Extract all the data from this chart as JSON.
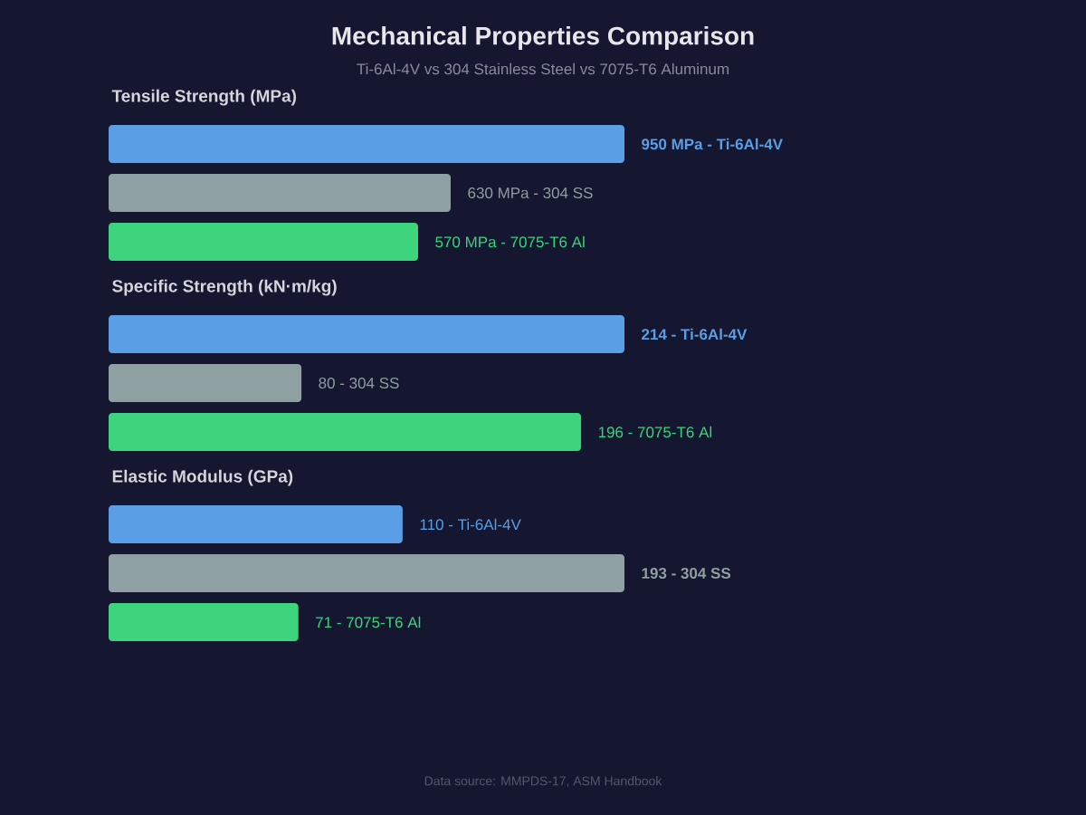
{
  "chart_data": [
    {
      "type": "other",
      "title": "Mechanical Properties Comparison",
      "subtitle": "Ti-6Al-4V vs 304 Stainless Steel vs 7075-T6 Aluminum",
      "annotations": [
        "Data source: MMPDS-17, ASM Handbook"
      ]
    },
    {
      "type": "bar",
      "orientation": "horizontal",
      "title": "Tensile Strength (MPa)",
      "categories": [
        null,
        null,
        null
      ],
      "values": [
        950,
        630,
        570
      ],
      "colors": [
        "#5a9fe6",
        "#8fa0a2",
        "#3ed47e"
      ],
      "value_labels": [
        "950 MPa - Ti-6Al-4V",
        "630 MPa - 304 SS",
        "570 MPa - 7075-T6 Al"
      ]
    },
    {
      "type": "bar",
      "orientation": "horizontal",
      "title": "Specific Strength (kN·m/kg)",
      "categories": [
        null,
        null,
        null
      ],
      "values": [
        214,
        80,
        196
      ],
      "colors": [
        "#5a9fe6",
        "#8fa0a2",
        "#3ed47e"
      ],
      "value_labels": [
        "214 - Ti-6Al-4V",
        "80 - 304 SS",
        "196 - 7075-T6 Al"
      ]
    },
    {
      "type": "bar",
      "orientation": "horizontal",
      "title": "Elastic Modulus (GPa)",
      "categories": [
        null,
        null,
        null
      ],
      "values": [
        110,
        193,
        71
      ],
      "colors": [
        "#5a9fe6",
        "#8fa0a2",
        "#3ed47e"
      ],
      "value_labels": [
        "110 - Ti-6Al-4V",
        "193 - 304 SS",
        "71 - 7075-T6 Al"
      ]
    }
  ]
}
